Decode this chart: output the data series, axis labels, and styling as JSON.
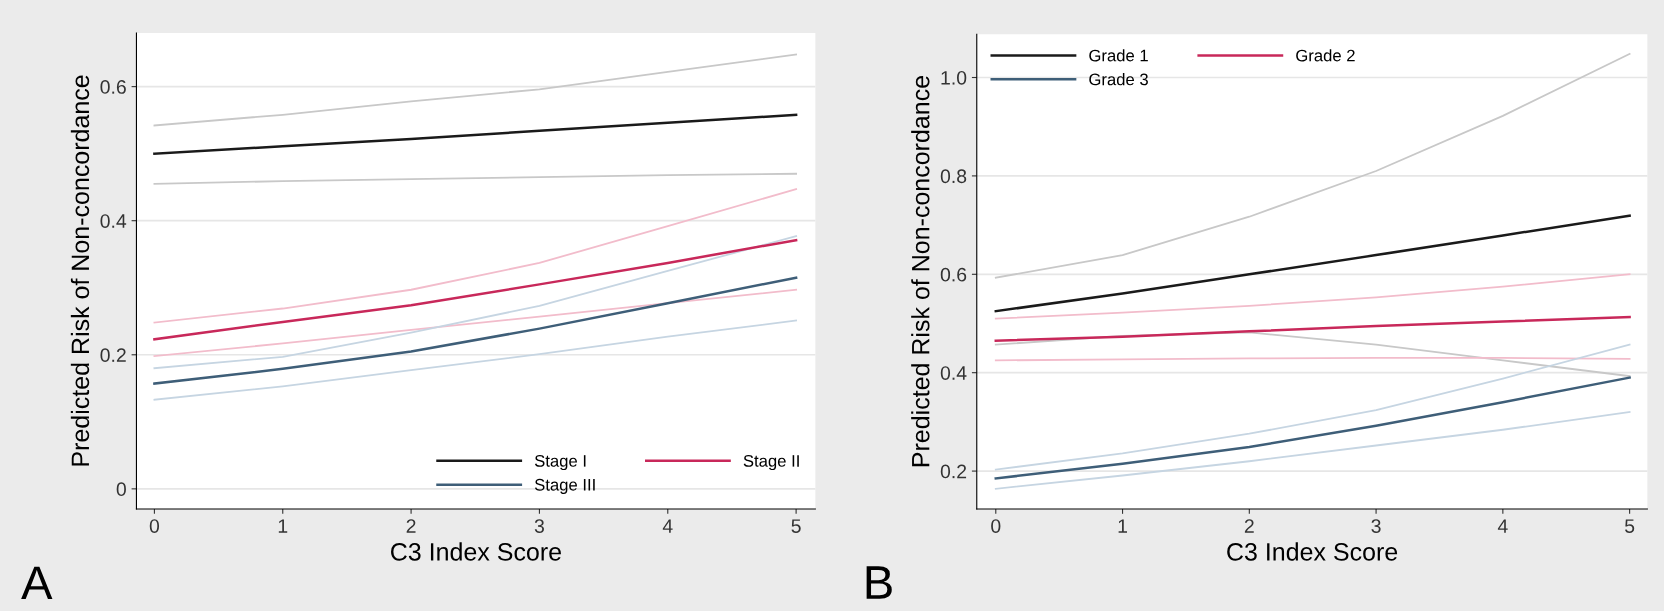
{
  "chart_data": [
    {
      "type": "line",
      "xlabel": "C3 Index Score",
      "ylabel": "Predicted Risk of Non-concordance",
      "annotations": [
        "A"
      ],
      "x": [
        0,
        1,
        2,
        3,
        4,
        5
      ],
      "xlim": [
        -0.14,
        5.15
      ],
      "xticks": [
        0,
        1,
        2,
        3,
        4,
        5
      ],
      "ylim": [
        -0.03,
        0.68
      ],
      "yticks": [
        0,
        0.2,
        0.4,
        0.6
      ],
      "grid": "y",
      "legend": "bottom right",
      "line_style": "solid",
      "series": [
        {
          "color": "#c8c8c8",
          "values": [
            0.542,
            0.558,
            0.578,
            0.596,
            0.622,
            0.648
          ]
        },
        {
          "color": "#c8c8c8",
          "values": [
            0.455,
            0.459,
            0.462,
            0.465,
            0.468,
            0.47
          ]
        },
        {
          "color": "#f2bccb",
          "values": [
            0.248,
            0.269,
            0.297,
            0.337,
            0.392,
            0.447
          ]
        },
        {
          "color": "#f2bccb",
          "values": [
            0.198,
            0.217,
            0.237,
            0.257,
            0.277,
            0.297
          ]
        },
        {
          "color": "#c6d5e2",
          "values": [
            0.18,
            0.197,
            0.233,
            0.273,
            0.325,
            0.377
          ]
        },
        {
          "color": "#c6d5e2",
          "values": [
            0.133,
            0.153,
            0.177,
            0.201,
            0.227,
            0.251
          ]
        },
        {
          "name": "Stage I",
          "color": "#1a1a1a",
          "values": [
            0.5,
            0.511,
            0.522,
            0.534,
            0.546,
            0.558
          ]
        },
        {
          "name": "Stage II",
          "color": "#c8285a",
          "values": [
            0.223,
            0.249,
            0.274,
            0.305,
            0.337,
            0.371
          ]
        },
        {
          "name": "Stage III",
          "color": "#3e5e78",
          "values": [
            0.157,
            0.179,
            0.205,
            0.239,
            0.277,
            0.315
          ]
        }
      ]
    },
    {
      "type": "line",
      "xlabel": "C3 Index Score",
      "ylabel": "Predicted Risk of Non-concordance",
      "annotations": [
        "B"
      ],
      "x": [
        0,
        1,
        2,
        3,
        4,
        5
      ],
      "xlim": [
        -0.15,
        5.14
      ],
      "xticks": [
        0,
        1,
        2,
        3,
        4,
        5
      ],
      "ylim": [
        0.123,
        1.088
      ],
      "yticks": [
        0.2,
        0.4,
        0.6,
        0.8,
        {
          "value": 1.0,
          "label": "1.0"
        }
      ],
      "grid": "y",
      "legend": "top left",
      "line_style": "solid",
      "series": [
        {
          "color": "#c8c8c8",
          "values": [
            0.593,
            0.639,
            0.717,
            0.81,
            0.922,
            1.048
          ]
        },
        {
          "color": "#c8c8c8",
          "values": [
            0.457,
            0.475,
            0.482,
            0.457,
            0.425,
            0.393
          ]
        },
        {
          "color": "#f2bccb",
          "values": [
            0.51,
            0.522,
            0.536,
            0.553,
            0.575,
            0.6
          ]
        },
        {
          "color": "#f2bccb",
          "values": [
            0.425,
            0.427,
            0.429,
            0.43,
            0.43,
            0.428
          ]
        },
        {
          "color": "#c6d5e2",
          "values": [
            0.203,
            0.236,
            0.276,
            0.324,
            0.388,
            0.457
          ]
        },
        {
          "color": "#c6d5e2",
          "values": [
            0.164,
            0.191,
            0.22,
            0.252,
            0.284,
            0.32
          ]
        },
        {
          "name": "Grade 1",
          "color": "#1a1a1a",
          "values": [
            0.525,
            0.561,
            0.6,
            0.639,
            0.679,
            0.719
          ]
        },
        {
          "name": "Grade 2",
          "color": "#c8285a",
          "values": [
            0.465,
            0.473,
            0.484,
            0.495,
            0.504,
            0.513
          ]
        },
        {
          "name": "Grade 3",
          "color": "#3e5e78",
          "values": [
            0.185,
            0.215,
            0.249,
            0.292,
            0.34,
            0.39
          ]
        }
      ]
    }
  ]
}
